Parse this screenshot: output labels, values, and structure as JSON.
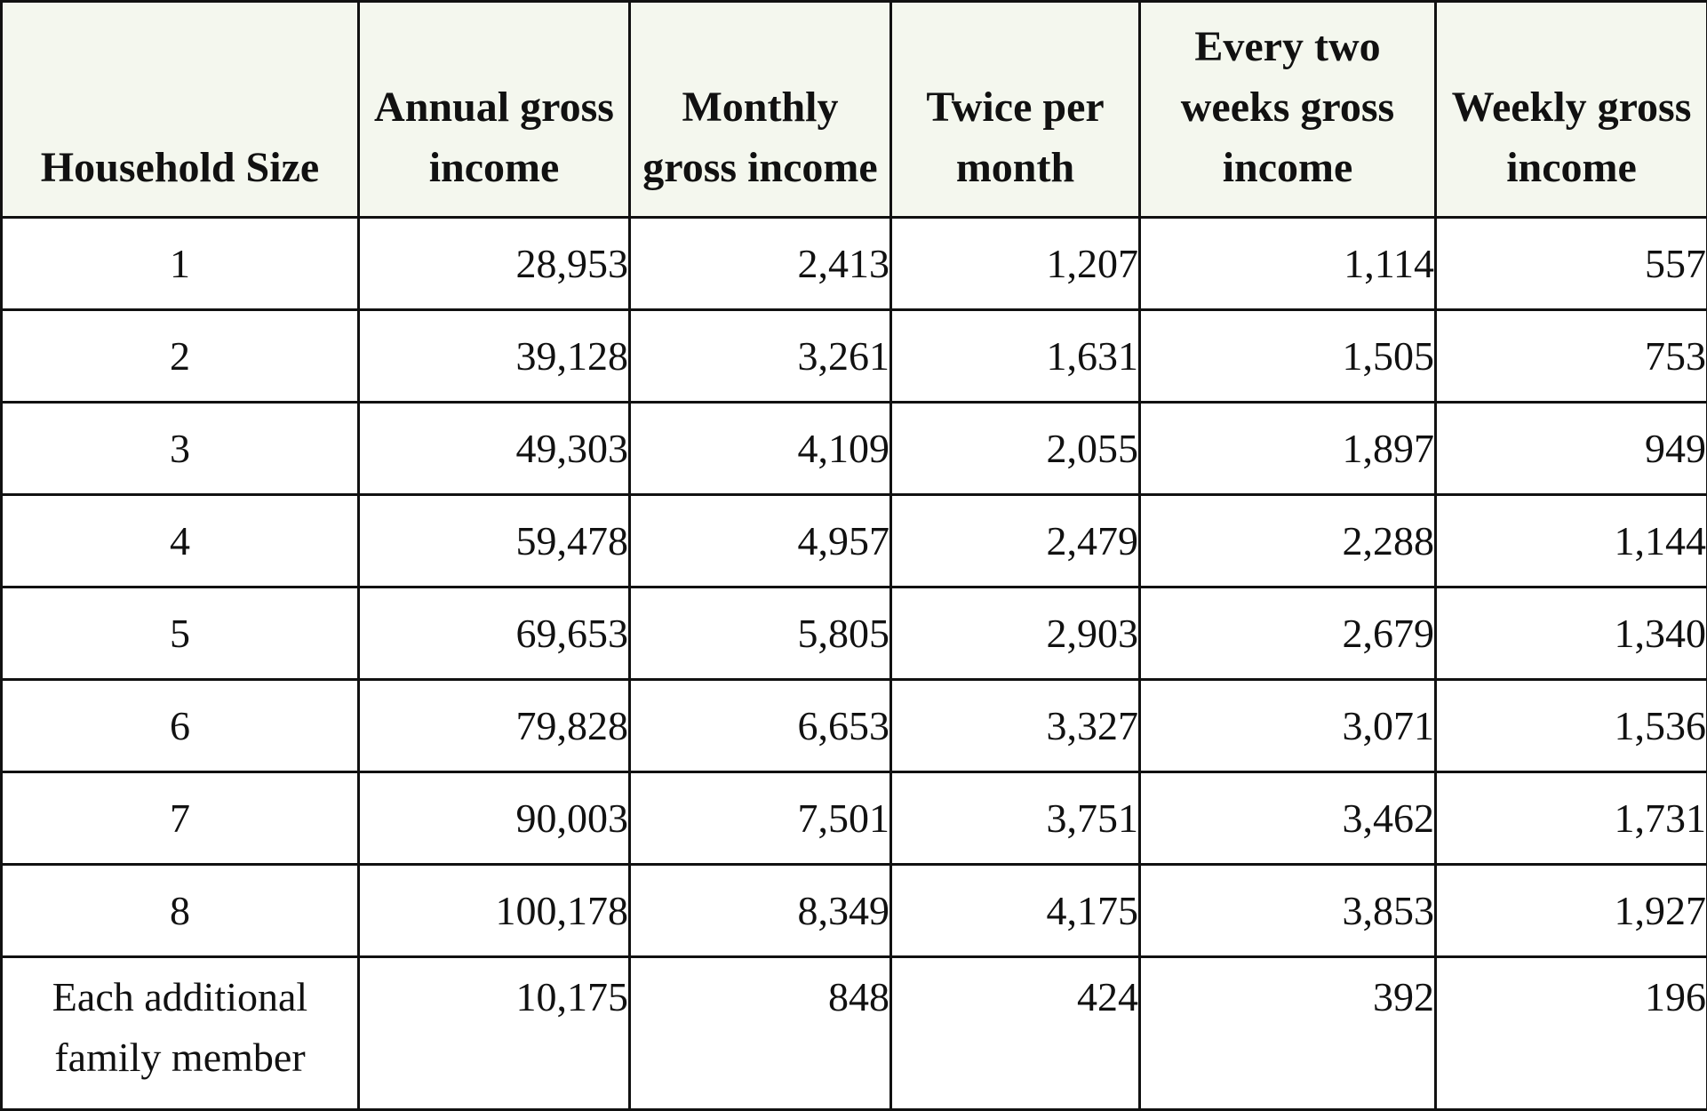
{
  "table": {
    "headers": [
      "Household Size",
      "Annual gross income",
      "Monthly gross income",
      "Twice per month",
      "Every two weeks gross income",
      "Weekly gross income"
    ],
    "rows": [
      [
        "1",
        "28,953",
        "2,413",
        "1,207",
        "1,114",
        "557"
      ],
      [
        "2",
        "39,128",
        "3,261",
        "1,631",
        "1,505",
        "753"
      ],
      [
        "3",
        "49,303",
        "4,109",
        "2,055",
        "1,897",
        "949"
      ],
      [
        "4",
        "59,478",
        "4,957",
        "2,479",
        "2,288",
        "1,144"
      ],
      [
        "5",
        "69,653",
        "5,805",
        "2,903",
        "2,679",
        "1,340"
      ],
      [
        "6",
        "79,828",
        "6,653",
        "3,327",
        "3,071",
        "1,536"
      ],
      [
        "7",
        "90,003",
        "7,501",
        "3,751",
        "3,462",
        "1,731"
      ],
      [
        "8",
        "100,178",
        "8,349",
        "4,175",
        "3,853",
        "1,927"
      ],
      [
        "Each additional family member",
        "10,175",
        "848",
        "424",
        "392",
        "196"
      ]
    ]
  },
  "colors": {
    "header_background": "#f4f7ee",
    "border": "#111111",
    "text": "#111111"
  }
}
